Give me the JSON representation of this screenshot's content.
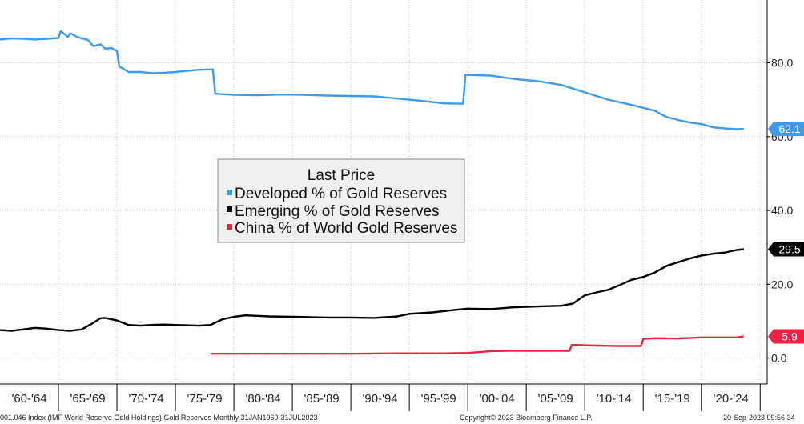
{
  "chart_data": {
    "type": "line",
    "title": "Last Price",
    "ylim": [
      -7,
      97
    ],
    "y_ticks": [
      0,
      20,
      40,
      60,
      80
    ],
    "y_tick_labels": [
      "0.0",
      "20.0",
      "40.0",
      "60.0",
      "80.0"
    ],
    "x_range": [
      1960.0,
      2025.6
    ],
    "x_ticks": [
      {
        "label": "'60-'64",
        "center": 1962.5
      },
      {
        "label": "'65-'69",
        "center": 1967.5
      },
      {
        "label": "'70-'74",
        "center": 1972.5
      },
      {
        "label": "'75-'79",
        "center": 1977.5
      },
      {
        "label": "'80-'84",
        "center": 1982.5
      },
      {
        "label": "'85-'89",
        "center": 1987.5
      },
      {
        "label": "'90-'94",
        "center": 1992.5
      },
      {
        "label": "'95-'99",
        "center": 1997.5
      },
      {
        "label": "'00-'04",
        "center": 2002.5
      },
      {
        "label": "'05-'09",
        "center": 2007.5
      },
      {
        "label": "'10-'14",
        "center": 2012.5
      },
      {
        "label": "'15-'19",
        "center": 2017.5
      },
      {
        "label": "'20-'24",
        "center": 2022.5
      }
    ],
    "x_separators": [
      1965,
      1970,
      1975,
      1980,
      1985,
      1990,
      1995,
      2000,
      2005,
      2010,
      2015,
      2020,
      2025
    ],
    "series": [
      {
        "name": "Developed % of Gold Reserves",
        "color": "#3d9be9",
        "last_value": "62.1",
        "points": [
          [
            1960.0,
            86.3
          ],
          [
            1961.0,
            86.6
          ],
          [
            1962.0,
            86.5
          ],
          [
            1963.0,
            86.3
          ],
          [
            1964.0,
            86.5
          ],
          [
            1965.0,
            86.7
          ],
          [
            1965.2,
            88.6
          ],
          [
            1965.8,
            87.0
          ],
          [
            1966.0,
            88.0
          ],
          [
            1966.6,
            87.0
          ],
          [
            1967.0,
            86.6
          ],
          [
            1967.5,
            86.2
          ],
          [
            1968.0,
            84.5
          ],
          [
            1968.6,
            85.0
          ],
          [
            1969.0,
            83.8
          ],
          [
            1969.5,
            84.0
          ],
          [
            1970.0,
            83.2
          ],
          [
            1970.2,
            79.0
          ],
          [
            1971.0,
            77.5
          ],
          [
            1972.0,
            77.5
          ],
          [
            1973.0,
            77.2
          ],
          [
            1974.0,
            77.3
          ],
          [
            1975.0,
            77.5
          ],
          [
            1976.0,
            77.8
          ],
          [
            1977.0,
            78.1
          ],
          [
            1978.2,
            78.2
          ],
          [
            1978.4,
            71.6
          ],
          [
            1980.0,
            71.3
          ],
          [
            1982.0,
            71.2
          ],
          [
            1984.0,
            71.4
          ],
          [
            1986.0,
            71.3
          ],
          [
            1988.0,
            71.1
          ],
          [
            1990.0,
            71.0
          ],
          [
            1992.0,
            70.9
          ],
          [
            1994.0,
            70.3
          ],
          [
            1996.0,
            69.7
          ],
          [
            1998.0,
            69.0
          ],
          [
            1999.6,
            68.9
          ],
          [
            1999.8,
            76.7
          ],
          [
            2002.0,
            76.5
          ],
          [
            2004.0,
            75.6
          ],
          [
            2006.0,
            75.0
          ],
          [
            2008.0,
            74.0
          ],
          [
            2010.0,
            72.0
          ],
          [
            2012.0,
            70.0
          ],
          [
            2014.0,
            68.6
          ],
          [
            2016.0,
            67.0
          ],
          [
            2017.0,
            65.3
          ],
          [
            2018.0,
            64.5
          ],
          [
            2019.0,
            63.8
          ],
          [
            2020.0,
            63.4
          ],
          [
            2021.0,
            62.5
          ],
          [
            2022.0,
            62.2
          ],
          [
            2023.0,
            62.0
          ],
          [
            2023.6,
            62.1
          ]
        ]
      },
      {
        "name": "Emerging % of Gold Reserves",
        "color": "#000000",
        "last_value": "29.5",
        "points": [
          [
            1960.0,
            7.6
          ],
          [
            1961.0,
            7.4
          ],
          [
            1962.0,
            7.8
          ],
          [
            1963.0,
            8.2
          ],
          [
            1964.0,
            8.0
          ],
          [
            1965.0,
            7.6
          ],
          [
            1966.0,
            7.4
          ],
          [
            1967.0,
            7.8
          ],
          [
            1968.0,
            9.6
          ],
          [
            1968.6,
            10.8
          ],
          [
            1969.0,
            10.9
          ],
          [
            1970.0,
            10.2
          ],
          [
            1971.0,
            9.0
          ],
          [
            1972.0,
            8.8
          ],
          [
            1973.0,
            9.0
          ],
          [
            1974.0,
            9.1
          ],
          [
            1975.0,
            9.0
          ],
          [
            1976.0,
            8.9
          ],
          [
            1977.0,
            8.8
          ],
          [
            1978.0,
            9.0
          ],
          [
            1979.0,
            10.5
          ],
          [
            1980.0,
            11.2
          ],
          [
            1981.0,
            11.6
          ],
          [
            1983.0,
            11.3
          ],
          [
            1985.0,
            11.2
          ],
          [
            1988.0,
            11.0
          ],
          [
            1990.0,
            11.0
          ],
          [
            1992.0,
            10.9
          ],
          [
            1994.0,
            11.3
          ],
          [
            1995.0,
            12.0
          ],
          [
            1997.0,
            12.4
          ],
          [
            1999.0,
            13.1
          ],
          [
            2000.0,
            13.4
          ],
          [
            2002.0,
            13.3
          ],
          [
            2004.0,
            13.8
          ],
          [
            2006.0,
            14.0
          ],
          [
            2008.0,
            14.2
          ],
          [
            2009.0,
            14.8
          ],
          [
            2010.0,
            17.0
          ],
          [
            2011.0,
            17.8
          ],
          [
            2012.0,
            18.5
          ],
          [
            2013.0,
            19.8
          ],
          [
            2014.0,
            21.2
          ],
          [
            2015.0,
            22.0
          ],
          [
            2016.0,
            23.2
          ],
          [
            2017.0,
            25.0
          ],
          [
            2018.0,
            26.0
          ],
          [
            2019.0,
            27.0
          ],
          [
            2020.0,
            27.8
          ],
          [
            2021.0,
            28.3
          ],
          [
            2022.0,
            28.6
          ],
          [
            2023.0,
            29.3
          ],
          [
            2023.6,
            29.5
          ]
        ]
      },
      {
        "name": "China % of World Gold Reserves",
        "color": "#ee2244",
        "last_value": "5.9",
        "points": [
          [
            1978.0,
            1.2
          ],
          [
            1982.0,
            1.2
          ],
          [
            1986.0,
            1.2
          ],
          [
            1990.0,
            1.2
          ],
          [
            1994.0,
            1.3
          ],
          [
            1998.0,
            1.3
          ],
          [
            2000.0,
            1.4
          ],
          [
            2002.0,
            1.9
          ],
          [
            2004.0,
            2.0
          ],
          [
            2006.0,
            2.0
          ],
          [
            2008.7,
            2.0
          ],
          [
            2008.9,
            3.6
          ],
          [
            2011.0,
            3.4
          ],
          [
            2013.0,
            3.3
          ],
          [
            2014.8,
            3.3
          ],
          [
            2015.0,
            5.2
          ],
          [
            2016.0,
            5.4
          ],
          [
            2018.0,
            5.3
          ],
          [
            2020.0,
            5.6
          ],
          [
            2022.0,
            5.6
          ],
          [
            2023.0,
            5.6
          ],
          [
            2023.6,
            5.9
          ]
        ]
      }
    ]
  },
  "footer": {
    "left": "001.046 Index (IMF World Reserve Gold Holdings) Gold Reserves  Monthly 31JAN1960-31JUL2023",
    "center": "Copyright© 2023 Bloomberg Finance L.P.",
    "right": "20-Sep-2023 09:56:34"
  }
}
